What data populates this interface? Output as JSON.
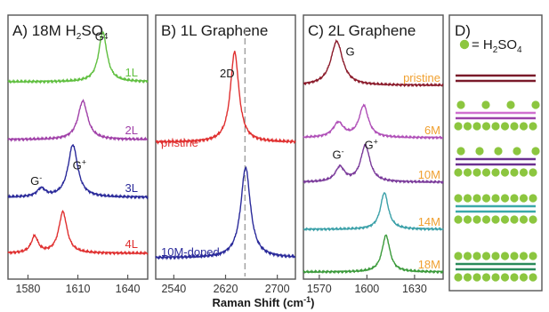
{
  "x_axis_title": "Raman Shift (cm",
  "x_axis_title_sup": "-1",
  "x_axis_title_end": ")",
  "chart_data": [
    {
      "panel": "A",
      "type": "line",
      "title": "A) 18M H",
      "title_sub": "2",
      "title_end": "SO",
      "title_sub2": "4",
      "xlim": [
        1568,
        1652
      ],
      "xticks": [
        1580,
        1610,
        1640
      ],
      "series": [
        {
          "name": "1L",
          "color": "#5fbf3f",
          "offset": 0.0,
          "peaks": [
            {
              "x": 1625,
              "h": 0.9,
              "w": 3.0
            }
          ]
        },
        {
          "name": "2L",
          "color": "#a040a8",
          "offset": 1.0,
          "peaks": [
            {
              "x": 1613,
              "h": 0.7,
              "w": 3.5
            }
          ]
        },
        {
          "name": "3L",
          "color": "#2a2a9a",
          "offset": 2.0,
          "peaks": [
            {
              "x": 1588,
              "h": 0.15,
              "w": 3.0
            },
            {
              "x": 1607,
              "h": 0.95,
              "w": 3.5
            }
          ]
        },
        {
          "name": "4L",
          "color": "#e03030",
          "offset": 3.0,
          "peaks": [
            {
              "x": 1584,
              "h": 0.3,
              "w": 2.5
            },
            {
              "x": 1601,
              "h": 0.75,
              "w": 3.0
            }
          ]
        }
      ],
      "peak_labels": [
        {
          "text": "G",
          "x": 1623,
          "series": 0
        },
        {
          "text": "G",
          "sup": "+",
          "x": 1611,
          "series": 2
        },
        {
          "text": "G",
          "sup": "-",
          "x": 1586,
          "series": 2
        }
      ]
    },
    {
      "panel": "B",
      "type": "line",
      "title": "B) 1L Graphene",
      "xlim": [
        2512,
        2728
      ],
      "xticks": [
        2540,
        2620,
        2700
      ],
      "marker_line_x": 2650,
      "series": [
        {
          "name": "pristine",
          "color": "#e03030",
          "offset": 0.0,
          "peaks": [
            {
              "x": 2634,
              "h": 1.45,
              "w": 8.0
            }
          ]
        },
        {
          "name": "10M-doped",
          "color": "#2a2a9a",
          "offset": 1.6,
          "peaks": [
            {
              "x": 2651,
              "h": 1.45,
              "w": 9.0
            }
          ]
        }
      ],
      "peak_labels": [
        {
          "text": "2D",
          "x": 2628,
          "series": 0
        }
      ]
    },
    {
      "panel": "C",
      "type": "line",
      "title": "C) 2L Graphene",
      "xlim": [
        1560,
        1648
      ],
      "xticks": [
        1570,
        1600,
        1630
      ],
      "series": [
        {
          "name": "pristine",
          "color": "#8b1a2a",
          "label_color": "#f0a030",
          "offset": 0.0,
          "peaks": [
            {
              "x": 1581,
              "h": 0.9,
              "w": 4.5
            }
          ]
        },
        {
          "name": "6M",
          "color": "#b050b8",
          "label_color": "#f0a030",
          "offset": 0.95,
          "peaks": [
            {
              "x": 1582,
              "h": 0.3,
              "w": 4.0
            },
            {
              "x": 1598,
              "h": 0.65,
              "w": 3.5
            }
          ]
        },
        {
          "name": "10M",
          "color": "#7a3a9a",
          "label_color": "#f0a030",
          "offset": 1.75,
          "peaks": [
            {
              "x": 1583,
              "h": 0.3,
              "w": 3.5
            },
            {
              "x": 1599,
              "h": 0.75,
              "w": 3.5
            }
          ]
        },
        {
          "name": "14M",
          "color": "#3aa0a8",
          "label_color": "#f0a030",
          "offset": 2.6,
          "peaks": [
            {
              "x": 1611,
              "h": 0.75,
              "w": 3.0
            }
          ]
        },
        {
          "name": "18M",
          "color": "#3a9a3a",
          "label_color": "#f0a030",
          "offset": 3.35,
          "peaks": [
            {
              "x": 1612,
              "h": 0.75,
              "w": 3.0
            }
          ]
        }
      ],
      "peak_labels": [
        {
          "text": "G",
          "x": 1585,
          "series": 0
        },
        {
          "text": "G",
          "sup": "+",
          "x": 1601,
          "series": 2
        },
        {
          "text": "G",
          "sup": "-",
          "x": 1583,
          "series": 2
        }
      ]
    }
  ],
  "panel_d": {
    "title": "D)",
    "legend_text": "= H",
    "legend_sub": "2",
    "legend_text_end": "SO",
    "legend_sub2": "4",
    "dot_color": "#8cc63f",
    "rows": [
      {
        "colors": [
          "#7a1a2a",
          "#7a1a2a"
        ],
        "dots_above": 0,
        "dots_below": 0
      },
      {
        "colors": [
          "#d070d0",
          "#9a40a8"
        ],
        "dots_above": 4,
        "dots_below": 9
      },
      {
        "colors": [
          "#6a3090",
          "#6a3090"
        ],
        "dots_above": 5,
        "dots_below": 9
      },
      {
        "colors": [
          "#3aa8a8",
          "#3aa8a8"
        ],
        "dots_above": 9,
        "dots_below": 9
      },
      {
        "colors": [
          "#2a8a5a",
          "#2a8a5a"
        ],
        "dots_above": 9,
        "dots_below": 9
      }
    ]
  }
}
